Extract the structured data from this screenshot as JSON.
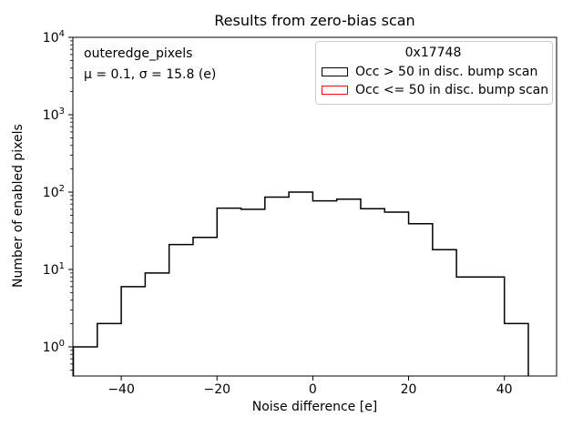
{
  "title": "Results from zero-bias scan",
  "axes": {
    "xlabel": "Noise difference [e]",
    "ylabel": "Number of enabled pixels",
    "x_ticks": [
      {
        "value": -40,
        "label": "−40"
      },
      {
        "value": -20,
        "label": "−20"
      },
      {
        "value": 0,
        "label": "0"
      },
      {
        "value": 20,
        "label": "20"
      },
      {
        "value": 40,
        "label": "40"
      }
    ],
    "y_ticks": [
      {
        "value": 1,
        "base": "10",
        "exp": "0"
      },
      {
        "value": 10,
        "base": "10",
        "exp": "1"
      },
      {
        "value": 100,
        "base": "10",
        "exp": "2"
      },
      {
        "value": 1000,
        "base": "10",
        "exp": "3"
      },
      {
        "value": 10000,
        "base": "10",
        "exp": "4"
      }
    ]
  },
  "annotation": {
    "line1": "outeredge_pixels",
    "line2": "μ = 0.1, σ = 15.8 (e)"
  },
  "legend": {
    "title": "0x17748",
    "entries": [
      {
        "label": "Occ > 50 in disc. bump scan",
        "color": "#000000"
      },
      {
        "label": "Occ <= 50 in disc. bump scan",
        "color": "#ff0000"
      }
    ]
  },
  "chart_data": {
    "type": "bar",
    "style": "step-histogram",
    "title": "Results from zero-bias scan",
    "xlabel": "Noise difference [e]",
    "ylabel": "Number of enabled pixels",
    "yscale": "log",
    "xlim": [
      -50.1,
      50.9
    ],
    "ylim": [
      0.42,
      10000
    ],
    "grid": false,
    "legend_position": "upper right",
    "series": [
      {
        "name": "Occ > 50 in disc. bump scan",
        "color": "#000000",
        "bin_edges": [
          -50,
          -45,
          -40,
          -35,
          -30,
          -25,
          -20,
          -15,
          -10,
          -5,
          0,
          5,
          10,
          15,
          20,
          25,
          30,
          35,
          40,
          45
        ],
        "counts": [
          1,
          2,
          6,
          9,
          21,
          26,
          62,
          60,
          86,
          100,
          77,
          81,
          61,
          55,
          39,
          18,
          8,
          8,
          2
        ]
      },
      {
        "name": "Occ <= 50 in disc. bump scan",
        "color": "#ff0000",
        "bin_edges": [],
        "counts": []
      }
    ],
    "stats": {
      "mu": 0.1,
      "sigma": 15.8,
      "unit": "e",
      "dataset": "outeredge_pixels"
    }
  }
}
